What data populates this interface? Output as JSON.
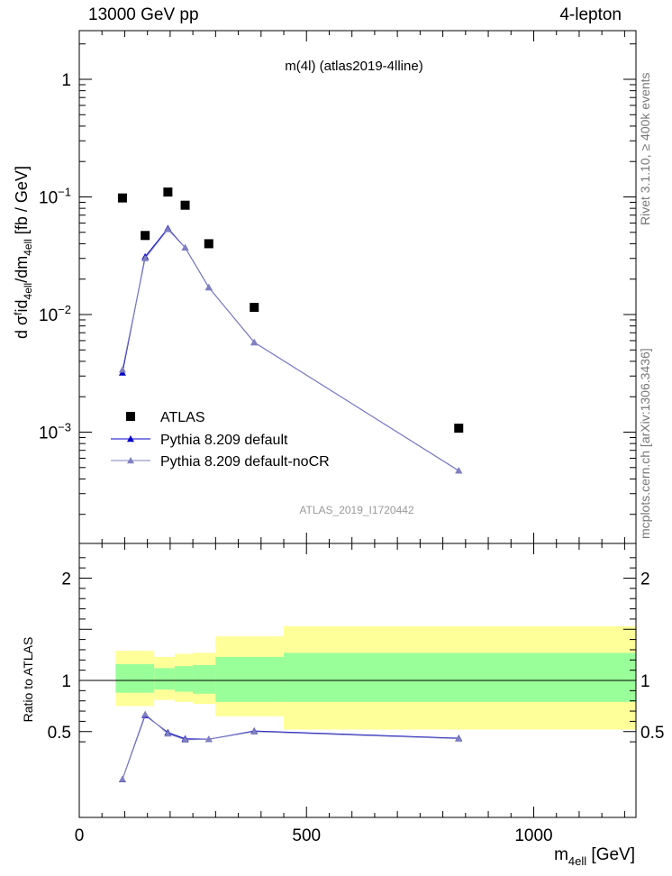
{
  "header": {
    "left": "13000 GeV pp",
    "right": "4-lepton"
  },
  "side_text": {
    "top": "Rivet 3.1.10, ≥ 400k events",
    "bottom": "mcplots.cern.ch [arXiv:1306.3436]"
  },
  "chart_data": [
    {
      "type": "scatter",
      "panel": "main",
      "title": "m(4l) (atlas2019-4lline)",
      "watermark": "ATLAS_2019_I1720442",
      "ylabel": "d σᶠid4ell/dm4ell [fb / GeV]",
      "yscale": "log",
      "ylim": [
        0.00015,
        2.5
      ],
      "xlim": [
        0,
        1225
      ],
      "yticks": [
        "1",
        "10⁻¹",
        "10⁻²",
        "10⁻³"
      ],
      "series": [
        {
          "name": "ATLAS",
          "marker": "square",
          "color": "#000000",
          "x": [
            95,
            145,
            195,
            233,
            285,
            385,
            835
          ],
          "y": [
            0.098,
            0.047,
            0.11,
            0.085,
            0.04,
            0.0115,
            0.00108
          ]
        },
        {
          "name": "Pythia 8.209 default",
          "marker": "triangle",
          "color": "#0000c8",
          "x": [
            95,
            145,
            195,
            233,
            285,
            385,
            835
          ],
          "y": [
            0.0032,
            0.031,
            0.054,
            0.037,
            0.017,
            0.0058,
            0.00047
          ]
        },
        {
          "name": "Pythia 8.209 default-noCR",
          "marker": "triangle",
          "color": "#8080c0",
          "x": [
            95,
            145,
            195,
            233,
            285,
            385,
            835
          ],
          "y": [
            0.0034,
            0.03,
            0.053,
            0.037,
            0.017,
            0.0058,
            0.00047
          ]
        }
      ]
    },
    {
      "type": "line",
      "panel": "ratio",
      "ylabel": "Ratio to ATLAS",
      "xlabel": "m4ell [GeV]",
      "xlim": [
        0,
        1225
      ],
      "ylim": [
        0.33,
        2.3
      ],
      "xticks": [
        "0",
        "500",
        "1000"
      ],
      "yticks": [
        "0.5",
        "1",
        "2"
      ],
      "bands": {
        "edges": [
          80,
          120,
          165,
          210,
          250,
          300,
          450,
          1225
        ],
        "inner_lo": [
          0.88,
          0.88,
          0.91,
          0.89,
          0.87,
          0.79,
          0.79
        ],
        "inner_hi": [
          1.16,
          1.16,
          1.12,
          1.14,
          1.15,
          1.23,
          1.27
        ],
        "outer_lo": [
          0.75,
          0.75,
          0.81,
          0.79,
          0.77,
          0.65,
          0.52
        ],
        "outer_hi": [
          1.29,
          1.29,
          1.23,
          1.26,
          1.27,
          1.43,
          1.53
        ],
        "inner_color": "#99ff99",
        "outer_color": "#ffff99"
      },
      "series": [
        {
          "name": "Pythia 8.209 default",
          "color": "#0000c8",
          "x": [
            95,
            145,
            195,
            233,
            285,
            385,
            835
          ],
          "y": [
            0.033,
            0.66,
            0.49,
            0.43,
            0.425,
            0.505,
            0.435
          ]
        },
        {
          "name": "Pythia 8.209 default-noCR",
          "color": "#8080c0",
          "x": [
            95,
            145,
            195,
            233,
            285,
            385,
            835
          ],
          "y": [
            0.035,
            0.67,
            0.48,
            0.42,
            0.425,
            0.5,
            0.43
          ]
        }
      ]
    }
  ]
}
